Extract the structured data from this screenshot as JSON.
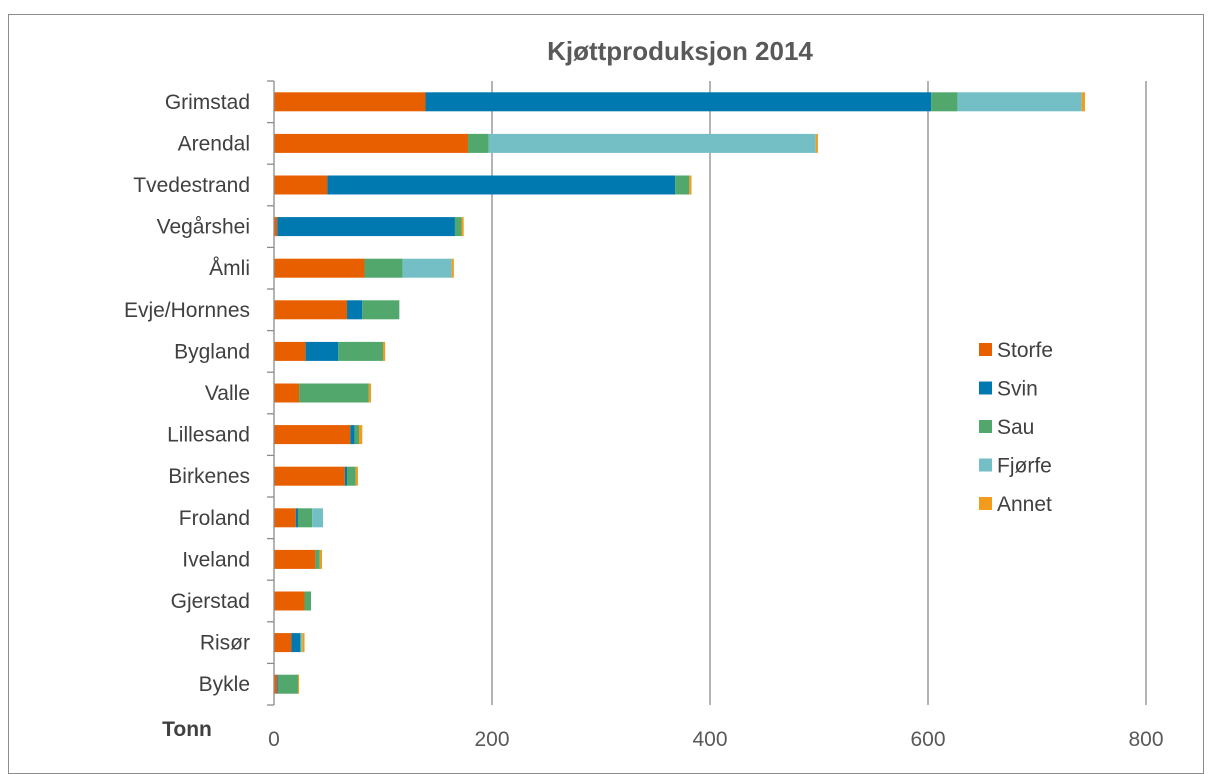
{
  "chart_data": {
    "type": "bar",
    "orientation": "horizontal",
    "stacked": true,
    "title": "Kjøttproduksjon 2014",
    "xlabel": "Tonn",
    "xlim": [
      0,
      800
    ],
    "xticks": [
      0,
      200,
      400,
      600,
      800
    ],
    "grid": "vertical",
    "legend_position": "right",
    "categories": [
      "Grimstad",
      "Arendal",
      "Tvedestrand",
      "Vegårshei",
      "Åmli",
      "Evje/Hornnes",
      "Bygland",
      "Valle",
      "Lillesand",
      "Birkenes",
      "Froland",
      "Iveland",
      "Gjerstad",
      "Risør",
      "Bykle"
    ],
    "series": [
      {
        "name": "Storfe",
        "color": "#e85f00",
        "values": [
          139,
          178,
          49,
          3,
          83,
          67,
          29,
          23,
          70,
          65,
          20,
          38,
          28,
          16,
          3
        ]
      },
      {
        "name": "Svin",
        "color": "#0078b0",
        "values": [
          464,
          0,
          319,
          163,
          0,
          14,
          30,
          0,
          4,
          2,
          2,
          0,
          0,
          8,
          1
        ]
      },
      {
        "name": "Sau",
        "color": "#52a86c",
        "values": [
          24,
          19,
          13,
          6,
          35,
          34,
          41,
          64,
          4,
          8,
          13,
          4,
          6,
          1,
          18
        ]
      },
      {
        "name": "Fjørfe",
        "color": "#74bfc6",
        "values": [
          114,
          300,
          0,
          0,
          45,
          0,
          0,
          0,
          0,
          0,
          10,
          0,
          0,
          1,
          0
        ]
      },
      {
        "name": "Annet",
        "color": "#f29b1c",
        "values": [
          3,
          2,
          2,
          2,
          2,
          0,
          2,
          2,
          3,
          2,
          0,
          2,
          0,
          2,
          1
        ]
      }
    ]
  }
}
